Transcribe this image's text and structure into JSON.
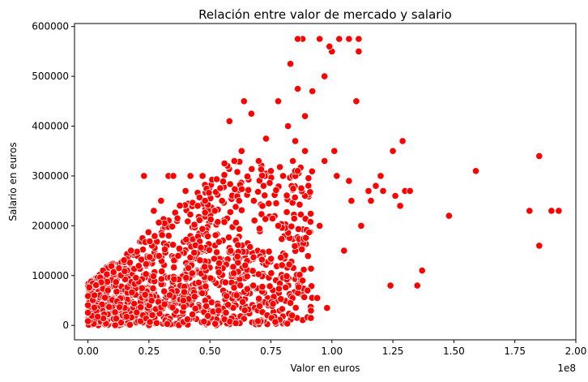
{
  "chart_data": {
    "type": "scatter",
    "title": "Relación entre valor de mercado y salario",
    "xlabel": "Valor en euros",
    "ylabel": "Salario en euros",
    "x_offset_label": "1e8",
    "x_ticks": [
      0,
      25000000,
      50000000,
      75000000,
      100000000,
      125000000,
      150000000,
      175000000,
      200000000
    ],
    "x_tick_labels": [
      "0.00",
      "0.25",
      "0.50",
      "0.75",
      "1.00",
      "1.25",
      "1.50",
      "1.75",
      "2.00"
    ],
    "y_ticks": [
      0,
      100000,
      200000,
      300000,
      400000,
      500000,
      600000
    ],
    "y_tick_labels": [
      "0",
      "100000",
      "200000",
      "300000",
      "400000",
      "500000",
      "600000"
    ],
    "xlim": [
      -5500000,
      200000000
    ],
    "ylim": [
      -29000,
      606000
    ],
    "grid": false,
    "marker_color": "#ff0000",
    "marker_edge_color": "#ffffff",
    "dense_cluster": {
      "note_points_approximate": true
    },
    "x": [
      88000000,
      86000000,
      95000000,
      103000000,
      107000000,
      111000000,
      100000000,
      99000000,
      83000000,
      111000000,
      86000000,
      92000000,
      97000000,
      110000000,
      78000000,
      89000000,
      82000000,
      64000000,
      67000000,
      58000000,
      73000000,
      85000000,
      89000000,
      101000000,
      107000000,
      97000000,
      125000000,
      129000000,
      185000000,
      159000000,
      148000000,
      181000000,
      190000000,
      193000000,
      185000000,
      130000000,
      121000000,
      128000000,
      137000000,
      135000000,
      124000000,
      98000000,
      94000000,
      90000000,
      88000000,
      23000000,
      33000000,
      35000000,
      42000000,
      47000000,
      56000000,
      60000000,
      63000000,
      70000000,
      75000000,
      80000000,
      84000000,
      86000000,
      102000000,
      108000000,
      115000000,
      118000000,
      126000000,
      132000000,
      120000000,
      112000000,
      105000000,
      95000000,
      78000000,
      68000000,
      55000000,
      48000000,
      40000000,
      30000000,
      27000000,
      62000000,
      72000000,
      52000000,
      45000000,
      116000000
    ],
    "y": [
      575000,
      575000,
      575000,
      575000,
      575000,
      575000,
      550000,
      560000,
      525000,
      550000,
      475000,
      470000,
      500000,
      450000,
      450000,
      420000,
      400000,
      450000,
      425000,
      410000,
      375000,
      370000,
      350000,
      350000,
      290000,
      330000,
      350000,
      370000,
      340000,
      310000,
      220000,
      230000,
      230000,
      230000,
      160000,
      270000,
      270000,
      240000,
      110000,
      80000,
      80000,
      35000,
      55000,
      70000,
      90000,
      300000,
      300000,
      300000,
      300000,
      300000,
      325000,
      330000,
      350000,
      330000,
      310000,
      300000,
      330000,
      310000,
      300000,
      250000,
      270000,
      280000,
      260000,
      270000,
      300000,
      200000,
      150000,
      200000,
      200000,
      250000,
      250000,
      250000,
      270000,
      250000,
      230000,
      250000,
      280000,
      230000,
      240000,
      250000
    ]
  }
}
